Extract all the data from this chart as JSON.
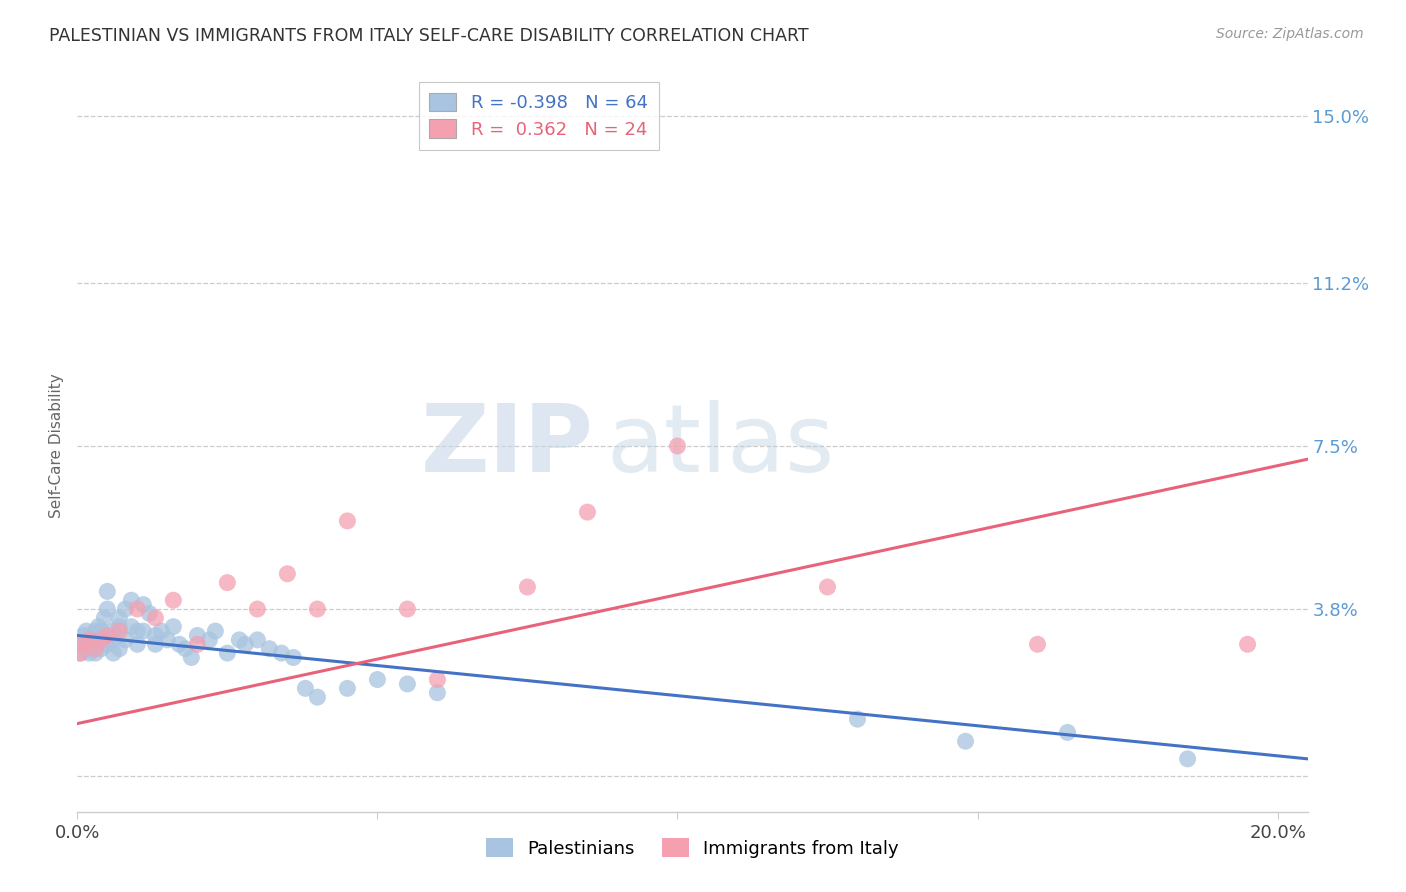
{
  "title": "PALESTINIAN VS IMMIGRANTS FROM ITALY SELF-CARE DISABILITY CORRELATION CHART",
  "source": "Source: ZipAtlas.com",
  "ylabel": "Self-Care Disability",
  "xlim": [
    0.0,
    0.205
  ],
  "ylim": [
    -0.008,
    0.158
  ],
  "yticks": [
    0.0,
    0.038,
    0.075,
    0.112,
    0.15
  ],
  "ytick_labels": [
    "",
    "3.8%",
    "7.5%",
    "11.2%",
    "15.0%"
  ],
  "xticks": [
    0.0,
    0.05,
    0.1,
    0.15,
    0.2
  ],
  "xtick_labels": [
    "0.0%",
    "",
    "",
    "",
    "20.0%"
  ],
  "blue_color": "#a8c4e0",
  "pink_color": "#f4a0b0",
  "blue_line_color": "#4472c4",
  "pink_line_color": "#e8637a",
  "right_axis_color": "#5b9bd5",
  "legend_R_blue": "-0.398",
  "legend_N_blue": "64",
  "legend_R_pink": "0.362",
  "legend_N_pink": "24",
  "watermark_zip": "ZIP",
  "watermark_atlas": "atlas",
  "blue_points_x": [
    0.0005,
    0.001,
    0.001,
    0.0015,
    0.0015,
    0.002,
    0.002,
    0.002,
    0.0025,
    0.003,
    0.003,
    0.003,
    0.003,
    0.0035,
    0.004,
    0.004,
    0.004,
    0.0045,
    0.005,
    0.005,
    0.005,
    0.006,
    0.006,
    0.006,
    0.007,
    0.007,
    0.007,
    0.008,
    0.008,
    0.009,
    0.009,
    0.01,
    0.01,
    0.011,
    0.011,
    0.012,
    0.013,
    0.013,
    0.014,
    0.015,
    0.016,
    0.017,
    0.018,
    0.019,
    0.02,
    0.022,
    0.023,
    0.025,
    0.027,
    0.028,
    0.03,
    0.032,
    0.034,
    0.036,
    0.038,
    0.04,
    0.045,
    0.05,
    0.055,
    0.06,
    0.13,
    0.148,
    0.165,
    0.185
  ],
  "blue_points_y": [
    0.028,
    0.03,
    0.032,
    0.029,
    0.033,
    0.03,
    0.031,
    0.028,
    0.032,
    0.029,
    0.031,
    0.033,
    0.028,
    0.034,
    0.031,
    0.033,
    0.029,
    0.036,
    0.042,
    0.038,
    0.03,
    0.033,
    0.031,
    0.028,
    0.036,
    0.034,
    0.029,
    0.038,
    0.031,
    0.04,
    0.034,
    0.03,
    0.033,
    0.039,
    0.033,
    0.037,
    0.032,
    0.03,
    0.033,
    0.031,
    0.034,
    0.03,
    0.029,
    0.027,
    0.032,
    0.031,
    0.033,
    0.028,
    0.031,
    0.03,
    0.031,
    0.029,
    0.028,
    0.027,
    0.02,
    0.018,
    0.02,
    0.022,
    0.021,
    0.019,
    0.013,
    0.008,
    0.01,
    0.004
  ],
  "pink_points_x": [
    0.0005,
    0.001,
    0.002,
    0.003,
    0.004,
    0.005,
    0.007,
    0.01,
    0.013,
    0.016,
    0.02,
    0.025,
    0.03,
    0.035,
    0.04,
    0.045,
    0.055,
    0.06,
    0.075,
    0.085,
    0.1,
    0.125,
    0.16,
    0.195
  ],
  "pink_points_y": [
    0.028,
    0.03,
    0.031,
    0.029,
    0.031,
    0.032,
    0.033,
    0.038,
    0.036,
    0.04,
    0.03,
    0.044,
    0.038,
    0.046,
    0.038,
    0.058,
    0.038,
    0.022,
    0.043,
    0.06,
    0.075,
    0.043,
    0.03,
    0.03
  ],
  "blue_line_x": [
    0.0,
    0.205
  ],
  "blue_line_y": [
    0.032,
    0.004
  ],
  "pink_line_x": [
    0.0,
    0.205
  ],
  "pink_line_y": [
    0.012,
    0.072
  ]
}
